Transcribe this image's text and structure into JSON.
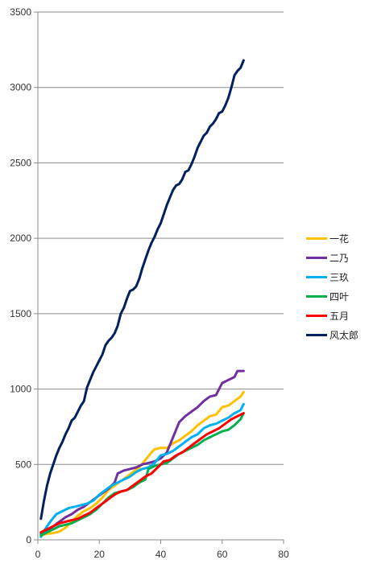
{
  "chart_data": {
    "type": "line",
    "title": "",
    "xlabel": "",
    "ylabel": "",
    "xlim": [
      0,
      80
    ],
    "ylim": [
      0,
      3500
    ],
    "x_ticks": [
      0,
      20,
      40,
      60,
      80
    ],
    "y_ticks": [
      0,
      500,
      1000,
      1500,
      2000,
      2500,
      3000,
      3500
    ],
    "grid": "horizontal",
    "legend_position": "right",
    "series": [
      {
        "name": "一花",
        "color": "#FFC000",
        "points": [
          [
            1,
            30
          ],
          [
            3,
            40
          ],
          [
            5,
            45
          ],
          [
            7,
            55
          ],
          [
            9,
            80
          ],
          [
            11,
            120
          ],
          [
            13,
            160
          ],
          [
            15,
            190
          ],
          [
            17,
            210
          ],
          [
            19,
            240
          ],
          [
            21,
            280
          ],
          [
            23,
            330
          ],
          [
            25,
            360
          ],
          [
            27,
            390
          ],
          [
            29,
            420
          ],
          [
            31,
            450
          ],
          [
            33,
            480
          ],
          [
            35,
            530
          ],
          [
            37,
            580
          ],
          [
            38,
            600
          ],
          [
            40,
            610
          ],
          [
            42,
            610
          ],
          [
            44,
            640
          ],
          [
            46,
            660
          ],
          [
            48,
            690
          ],
          [
            50,
            720
          ],
          [
            52,
            760
          ],
          [
            54,
            790
          ],
          [
            56,
            820
          ],
          [
            58,
            830
          ],
          [
            60,
            880
          ],
          [
            62,
            890
          ],
          [
            64,
            920
          ],
          [
            66,
            950
          ],
          [
            67,
            980
          ]
        ]
      },
      {
        "name": "二乃",
        "color": "#7030A0",
        "points": [
          [
            1,
            40
          ],
          [
            3,
            60
          ],
          [
            5,
            90
          ],
          [
            7,
            120
          ],
          [
            9,
            150
          ],
          [
            11,
            170
          ],
          [
            13,
            200
          ],
          [
            15,
            220
          ],
          [
            17,
            250
          ],
          [
            19,
            280
          ],
          [
            21,
            310
          ],
          [
            23,
            340
          ],
          [
            25,
            380
          ],
          [
            26,
            440
          ],
          [
            28,
            460
          ],
          [
            30,
            470
          ],
          [
            32,
            480
          ],
          [
            34,
            500
          ],
          [
            36,
            510
          ],
          [
            38,
            520
          ],
          [
            40,
            540
          ],
          [
            42,
            580
          ],
          [
            44,
            680
          ],
          [
            46,
            780
          ],
          [
            48,
            820
          ],
          [
            50,
            850
          ],
          [
            52,
            880
          ],
          [
            54,
            920
          ],
          [
            56,
            950
          ],
          [
            58,
            960
          ],
          [
            60,
            1040
          ],
          [
            62,
            1060
          ],
          [
            64,
            1080
          ],
          [
            65,
            1120
          ],
          [
            67,
            1120
          ]
        ]
      },
      {
        "name": "三玖",
        "color": "#00B0F0",
        "points": [
          [
            1,
            20
          ],
          [
            2,
            60
          ],
          [
            4,
            120
          ],
          [
            6,
            170
          ],
          [
            8,
            190
          ],
          [
            10,
            210
          ],
          [
            12,
            220
          ],
          [
            14,
            230
          ],
          [
            16,
            240
          ],
          [
            18,
            260
          ],
          [
            20,
            300
          ],
          [
            22,
            330
          ],
          [
            24,
            360
          ],
          [
            26,
            380
          ],
          [
            28,
            400
          ],
          [
            30,
            420
          ],
          [
            32,
            450
          ],
          [
            34,
            470
          ],
          [
            36,
            480
          ],
          [
            38,
            510
          ],
          [
            40,
            560
          ],
          [
            42,
            570
          ],
          [
            44,
            590
          ],
          [
            46,
            620
          ],
          [
            48,
            650
          ],
          [
            50,
            680
          ],
          [
            52,
            700
          ],
          [
            54,
            740
          ],
          [
            56,
            760
          ],
          [
            58,
            770
          ],
          [
            60,
            790
          ],
          [
            62,
            810
          ],
          [
            64,
            840
          ],
          [
            66,
            860
          ],
          [
            67,
            900
          ]
        ]
      },
      {
        "name": "四叶",
        "color": "#00B050",
        "points": [
          [
            1,
            30
          ],
          [
            3,
            50
          ],
          [
            5,
            70
          ],
          [
            7,
            90
          ],
          [
            9,
            100
          ],
          [
            11,
            110
          ],
          [
            13,
            130
          ],
          [
            15,
            150
          ],
          [
            17,
            170
          ],
          [
            19,
            200
          ],
          [
            21,
            240
          ],
          [
            23,
            280
          ],
          [
            25,
            310
          ],
          [
            27,
            320
          ],
          [
            29,
            330
          ],
          [
            31,
            350
          ],
          [
            33,
            380
          ],
          [
            35,
            400
          ],
          [
            36,
            470
          ],
          [
            38,
            490
          ],
          [
            40,
            500
          ],
          [
            42,
            510
          ],
          [
            44,
            540
          ],
          [
            46,
            570
          ],
          [
            48,
            590
          ],
          [
            50,
            610
          ],
          [
            52,
            630
          ],
          [
            54,
            660
          ],
          [
            56,
            680
          ],
          [
            58,
            700
          ],
          [
            60,
            720
          ],
          [
            62,
            730
          ],
          [
            64,
            760
          ],
          [
            66,
            800
          ],
          [
            67,
            840
          ]
        ]
      },
      {
        "name": "五月",
        "color": "#FF0000",
        "points": [
          [
            1,
            50
          ],
          [
            3,
            70
          ],
          [
            5,
            90
          ],
          [
            7,
            110
          ],
          [
            9,
            120
          ],
          [
            11,
            130
          ],
          [
            13,
            140
          ],
          [
            15,
            160
          ],
          [
            17,
            180
          ],
          [
            19,
            210
          ],
          [
            21,
            240
          ],
          [
            23,
            270
          ],
          [
            25,
            300
          ],
          [
            27,
            320
          ],
          [
            29,
            330
          ],
          [
            31,
            360
          ],
          [
            33,
            390
          ],
          [
            35,
            420
          ],
          [
            37,
            440
          ],
          [
            39,
            480
          ],
          [
            41,
            520
          ],
          [
            43,
            530
          ],
          [
            45,
            560
          ],
          [
            47,
            580
          ],
          [
            49,
            610
          ],
          [
            51,
            640
          ],
          [
            53,
            670
          ],
          [
            55,
            700
          ],
          [
            57,
            720
          ],
          [
            59,
            740
          ],
          [
            61,
            770
          ],
          [
            63,
            800
          ],
          [
            65,
            820
          ],
          [
            67,
            840
          ]
        ]
      },
      {
        "name": "风太郎",
        "color": "#002060",
        "points": [
          [
            1,
            140
          ],
          [
            2,
            260
          ],
          [
            3,
            360
          ],
          [
            4,
            440
          ],
          [
            5,
            500
          ],
          [
            6,
            560
          ],
          [
            7,
            610
          ],
          [
            8,
            650
          ],
          [
            9,
            700
          ],
          [
            10,
            740
          ],
          [
            11,
            790
          ],
          [
            12,
            810
          ],
          [
            13,
            850
          ],
          [
            14,
            890
          ],
          [
            15,
            920
          ],
          [
            16,
            1010
          ],
          [
            17,
            1060
          ],
          [
            18,
            1110
          ],
          [
            19,
            1150
          ],
          [
            20,
            1190
          ],
          [
            21,
            1230
          ],
          [
            22,
            1290
          ],
          [
            23,
            1320
          ],
          [
            24,
            1340
          ],
          [
            25,
            1370
          ],
          [
            26,
            1420
          ],
          [
            27,
            1500
          ],
          [
            28,
            1540
          ],
          [
            29,
            1600
          ],
          [
            30,
            1650
          ],
          [
            31,
            1660
          ],
          [
            32,
            1680
          ],
          [
            33,
            1730
          ],
          [
            34,
            1800
          ],
          [
            35,
            1860
          ],
          [
            36,
            1920
          ],
          [
            37,
            1970
          ],
          [
            38,
            2010
          ],
          [
            39,
            2060
          ],
          [
            40,
            2100
          ],
          [
            41,
            2160
          ],
          [
            42,
            2220
          ],
          [
            43,
            2270
          ],
          [
            44,
            2320
          ],
          [
            45,
            2350
          ],
          [
            46,
            2360
          ],
          [
            47,
            2390
          ],
          [
            48,
            2440
          ],
          [
            49,
            2450
          ],
          [
            50,
            2490
          ],
          [
            51,
            2540
          ],
          [
            52,
            2600
          ],
          [
            53,
            2640
          ],
          [
            54,
            2680
          ],
          [
            55,
            2700
          ],
          [
            56,
            2740
          ],
          [
            57,
            2760
          ],
          [
            58,
            2790
          ],
          [
            59,
            2830
          ],
          [
            60,
            2840
          ],
          [
            61,
            2880
          ],
          [
            62,
            2930
          ],
          [
            63,
            3000
          ],
          [
            64,
            3080
          ],
          [
            65,
            3110
          ],
          [
            66,
            3130
          ],
          [
            67,
            3180
          ]
        ]
      }
    ]
  }
}
